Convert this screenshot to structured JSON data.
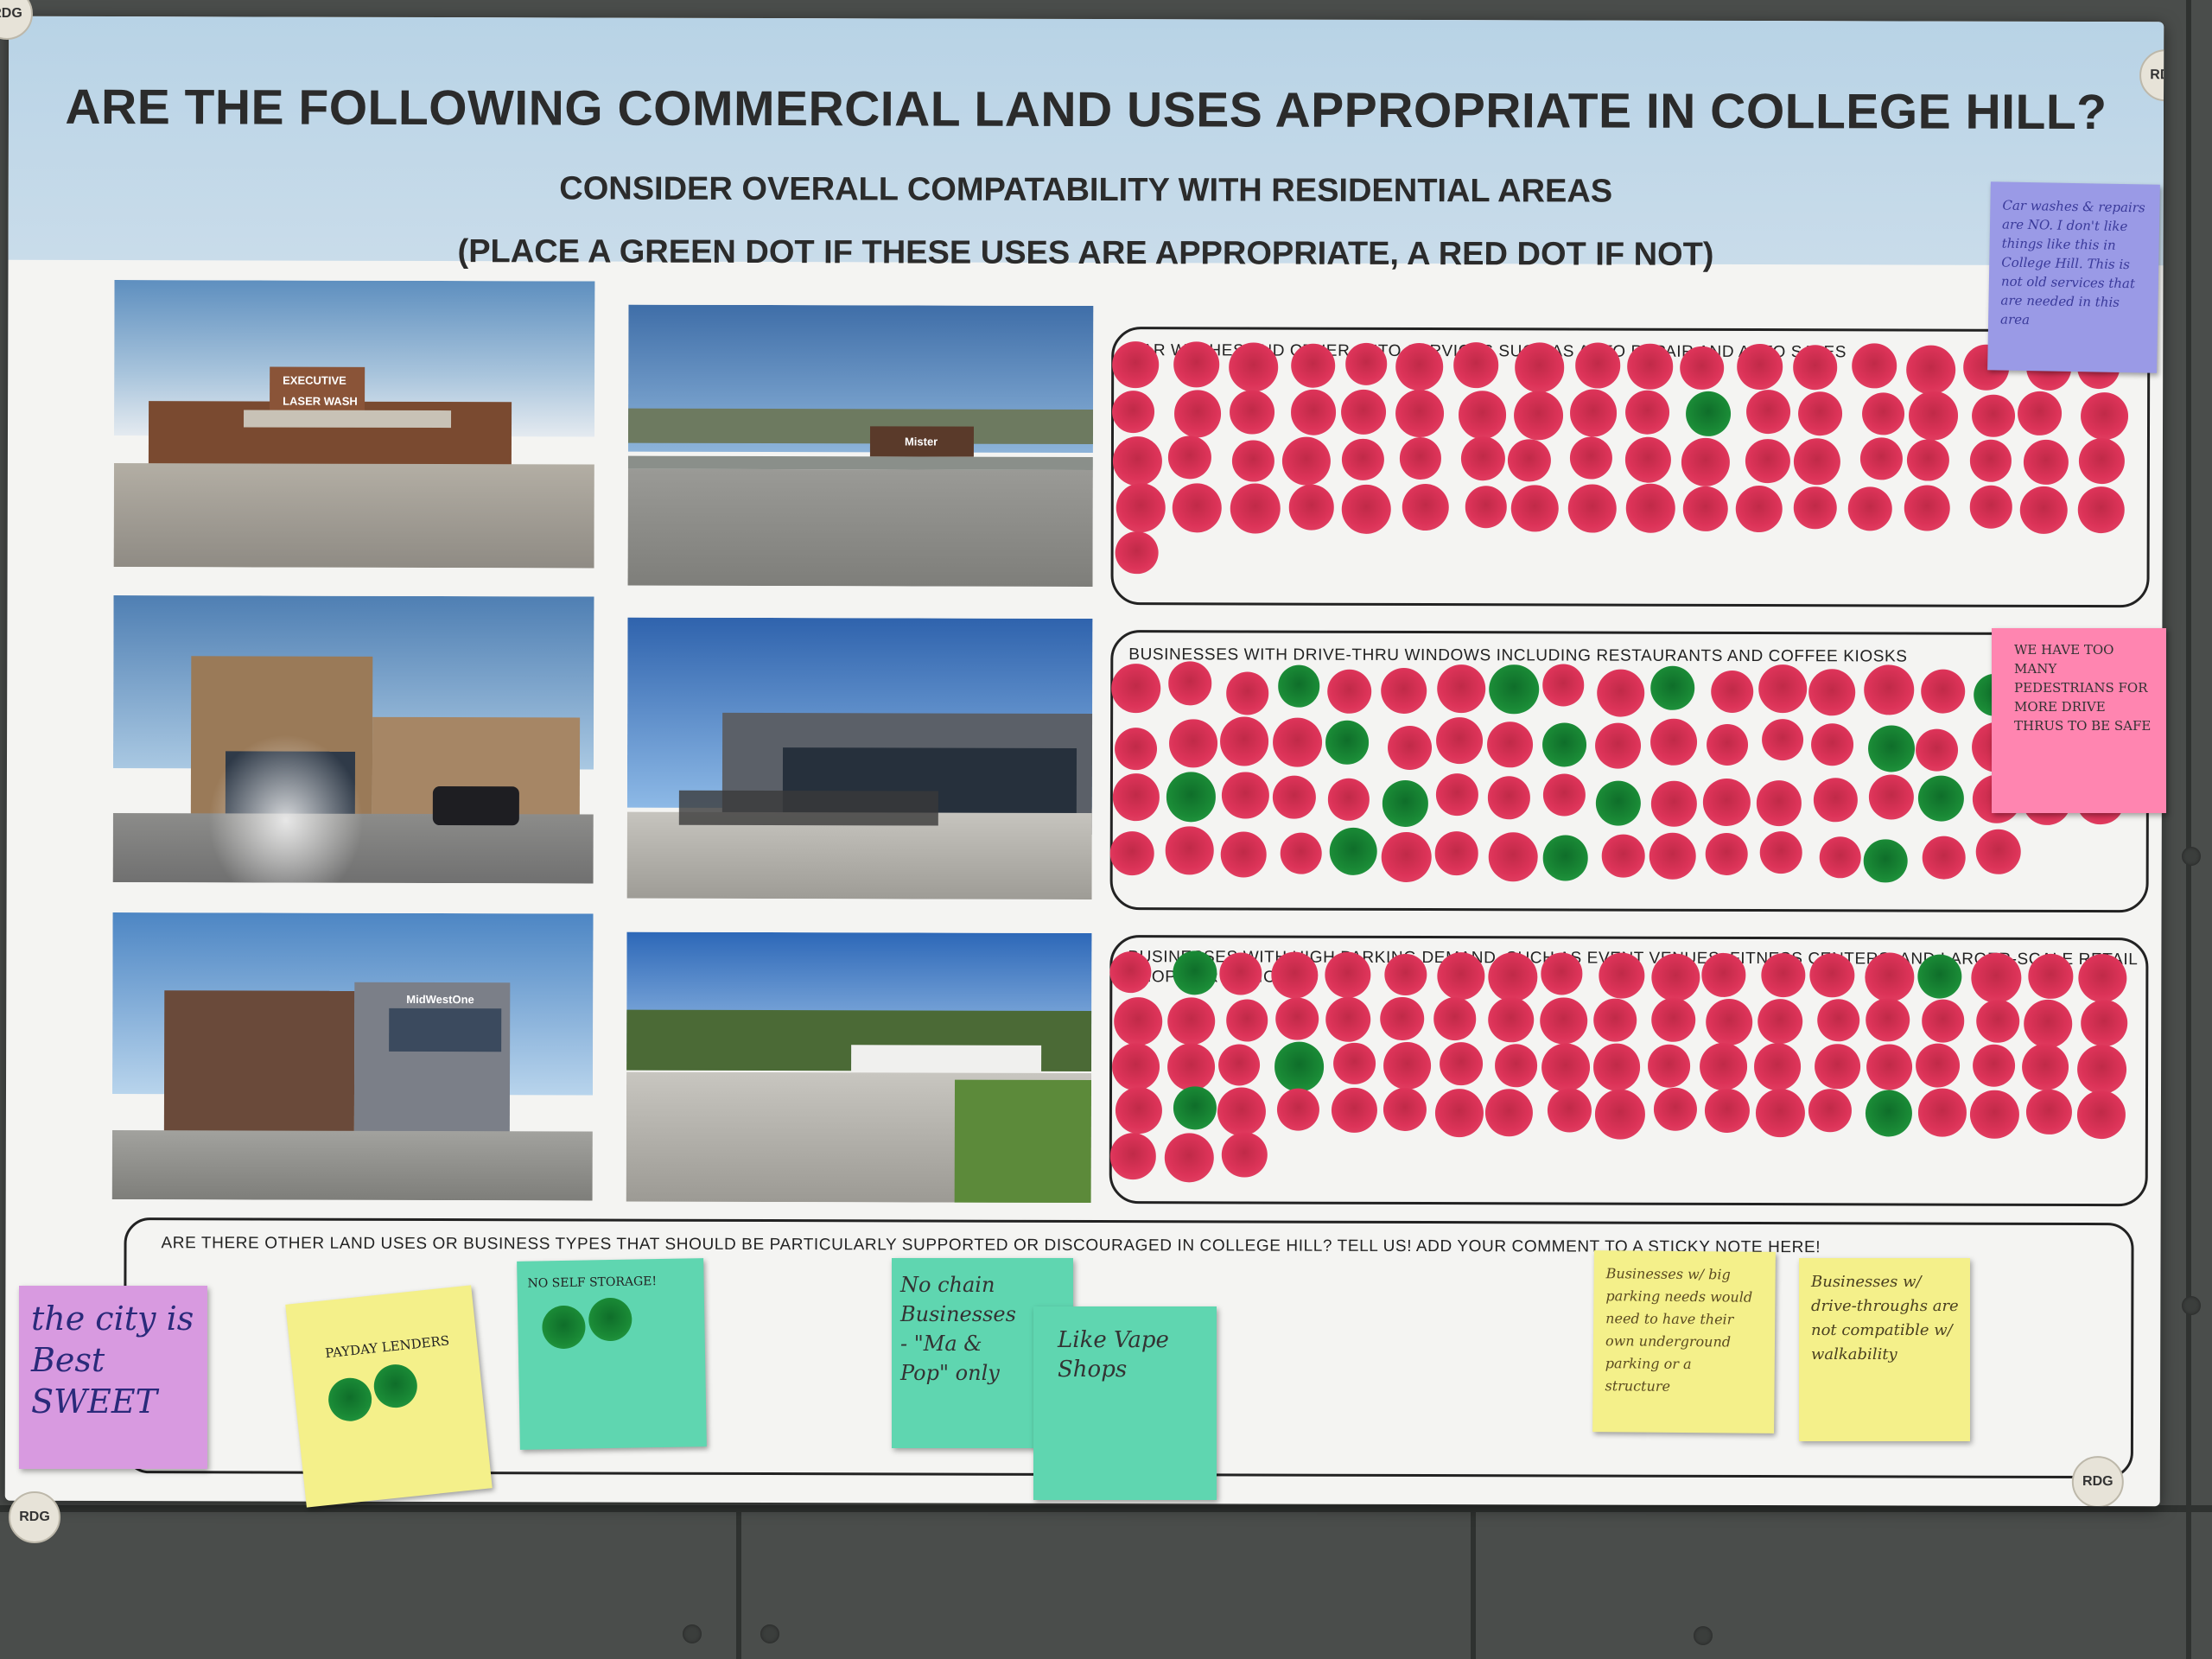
{
  "poster": {
    "title": "ARE THE FOLLOWING COMMERCIAL LAND USES APPROPRIATE IN COLLEGE HILL?",
    "subtitle": "CONSIDER OVERALL COMPATABILITY WITH RESIDENTIAL AREAS",
    "instruction": "(PLACE A GREEN DOT IF THESE USES ARE APPROPRIATE, A RED DOT IF NOT)"
  },
  "photos": {
    "carwash_sign1": "EXECUTIVE",
    "carwash_sign2": "LASER WASH",
    "mister_sign": "Mister",
    "bank_sign": "MidWestOne"
  },
  "sections": [
    {
      "label": "CAR WASHES AND OTHER AUTO SERVICES SUCH AS AUTO REPAIR AND AUTO SALES"
    },
    {
      "label": "BUSINESSES WITH DRIVE-THRU WINDOWS INCLUDING RESTAURANTS AND COFFEE KIOSKS"
    },
    {
      "label": "BUSINESSES WITH HIGH PARKING DEMAND, SUCH AS EVENT VENUES, FITNESS CENTERS, AND LARGER-SCALE RETAIL SHOPS OR OFFICES"
    }
  ],
  "comment_box": {
    "label": "ARE THERE OTHER LAND USES OR BUSINESS TYPES THAT SHOULD BE PARTICULARLY SUPPORTED OR DISCOURAGED IN COLLEGE HILL? TELL US! ADD YOUR COMMENT TO A STICKY NOTE HERE!"
  },
  "notes": {
    "car_wash_note": "Car washes & repairs are NO. I don't like things like this in College Hill. This is not old services that are needed in this area",
    "drive_thru_note": "WE HAVE TOO MANY PEDESTRIANS FOR MORE DRIVE THRUS TO BE SAFE",
    "purple_note": "the city is Best SWEET",
    "payday_note": "PAYDAY LENDERS",
    "self_storage_note": "NO SELF STORAGE!",
    "chain_note": "No chain Businesses - \"Ma & Pop\" only",
    "vape_note": "Like Vape Shops",
    "parking_note": "Businesses w/ big parking needs would need to have their own underground parking or a structure",
    "drive_through_note": "Businesses w/ drive-throughs are not compatible w/ walkability"
  },
  "dot_counts": {
    "car_wash": {
      "red": 72,
      "green": 1
    },
    "drive_thru": {
      "red": 60,
      "green": 14
    },
    "parking": {
      "red": 74,
      "green": 5
    }
  },
  "colors": {
    "banner": "#c0d7e8",
    "red_dot": "#dc3358",
    "green_dot": "#1a8a36",
    "note_purple": "#9a9ae6",
    "note_pink": "#ff85b0",
    "note_yellow": "#f4f08a",
    "note_teal": "#5fd6b0",
    "note_lilac": "#d89ae0"
  },
  "sticker": "RDG"
}
